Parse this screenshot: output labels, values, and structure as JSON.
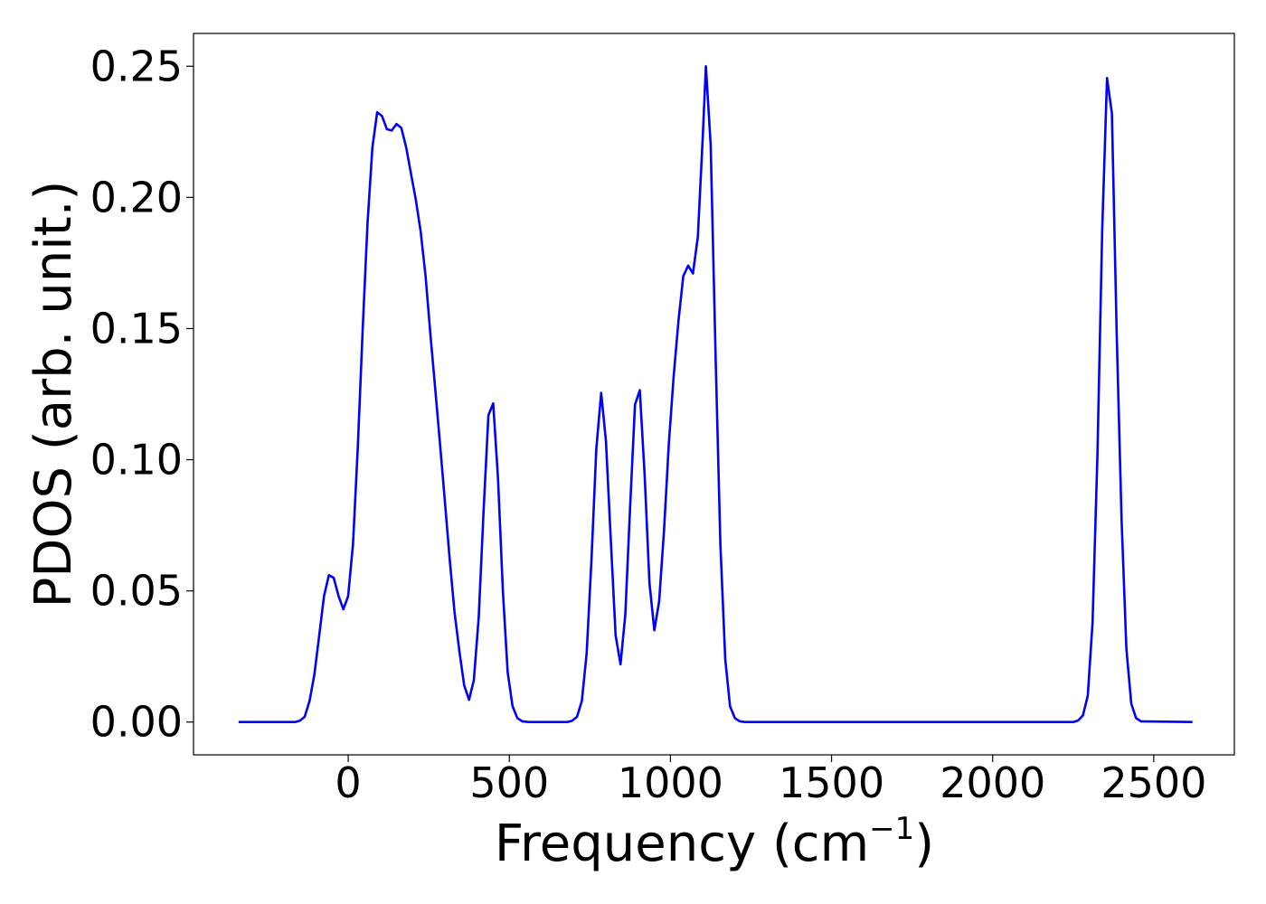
{
  "chart_data": {
    "type": "line",
    "xlabel": "Frequency (cm",
    "xlabel_sup": "−1",
    "xlabel_close": ")",
    "ylabel": "PDOS (arb. unit.)",
    "xlim": [
      -480,
      2750
    ],
    "ylim": [
      -0.0125,
      0.2625
    ],
    "xticks": [
      0,
      500,
      1000,
      1500,
      2000,
      2500
    ],
    "xtick_labels": [
      "0",
      "500",
      "1000",
      "1500",
      "2000",
      "2500"
    ],
    "yticks": [
      0.0,
      0.05,
      0.1,
      0.15,
      0.2,
      0.25
    ],
    "ytick_labels": [
      "0.00",
      "0.05",
      "0.10",
      "0.15",
      "0.20",
      "0.25"
    ],
    "grid": false,
    "series": [
      {
        "color": "#0000ff",
        "x": [
          -340,
          -200,
          -165,
          -150,
          -135,
          -120,
          -105,
          -90,
          -75,
          -60,
          -45,
          -30,
          -15,
          0,
          15,
          30,
          45,
          60,
          75,
          90,
          105,
          120,
          135,
          150,
          165,
          180,
          195,
          210,
          225,
          240,
          255,
          270,
          285,
          300,
          315,
          330,
          345,
          360,
          375,
          390,
          405,
          420,
          435,
          450,
          465,
          480,
          495,
          510,
          525,
          540,
          560,
          680,
          695,
          710,
          725,
          740,
          755,
          770,
          785,
          800,
          815,
          830,
          845,
          860,
          875,
          890,
          905,
          920,
          935,
          950,
          965,
          980,
          995,
          1010,
          1025,
          1040,
          1055,
          1070,
          1085,
          1100,
          1110,
          1125,
          1140,
          1155,
          1170,
          1185,
          1200,
          1215,
          1230,
          1260,
          2250,
          2265,
          2280,
          2295,
          2310,
          2325,
          2340,
          2355,
          2370,
          2385,
          2400,
          2415,
          2430,
          2445,
          2460,
          2620
        ],
        "y": [
          0.0,
          0.0,
          0.0,
          0.0005,
          0.002,
          0.008,
          0.018,
          0.033,
          0.048,
          0.056,
          0.055,
          0.048,
          0.043,
          0.048,
          0.068,
          0.105,
          0.15,
          0.19,
          0.219,
          0.2325,
          0.231,
          0.226,
          0.2255,
          0.228,
          0.2265,
          0.219,
          0.209,
          0.199,
          0.187,
          0.17,
          0.148,
          0.127,
          0.106,
          0.084,
          0.062,
          0.042,
          0.027,
          0.014,
          0.0085,
          0.016,
          0.04,
          0.08,
          0.117,
          0.1215,
          0.093,
          0.05,
          0.019,
          0.006,
          0.0015,
          0.0003,
          0.0,
          0.0,
          0.0005,
          0.002,
          0.008,
          0.026,
          0.062,
          0.104,
          0.1255,
          0.107,
          0.069,
          0.033,
          0.022,
          0.041,
          0.082,
          0.121,
          0.1265,
          0.094,
          0.053,
          0.035,
          0.046,
          0.073,
          0.106,
          0.132,
          0.153,
          0.17,
          0.174,
          0.171,
          0.185,
          0.222,
          0.25,
          0.22,
          0.14,
          0.068,
          0.024,
          0.006,
          0.0015,
          0.0003,
          0.0,
          0.0,
          0.0,
          0.0006,
          0.0025,
          0.01,
          0.038,
          0.102,
          0.188,
          0.2455,
          0.232,
          0.148,
          0.077,
          0.028,
          0.007,
          0.0015,
          0.0003,
          0.0
        ]
      }
    ]
  }
}
